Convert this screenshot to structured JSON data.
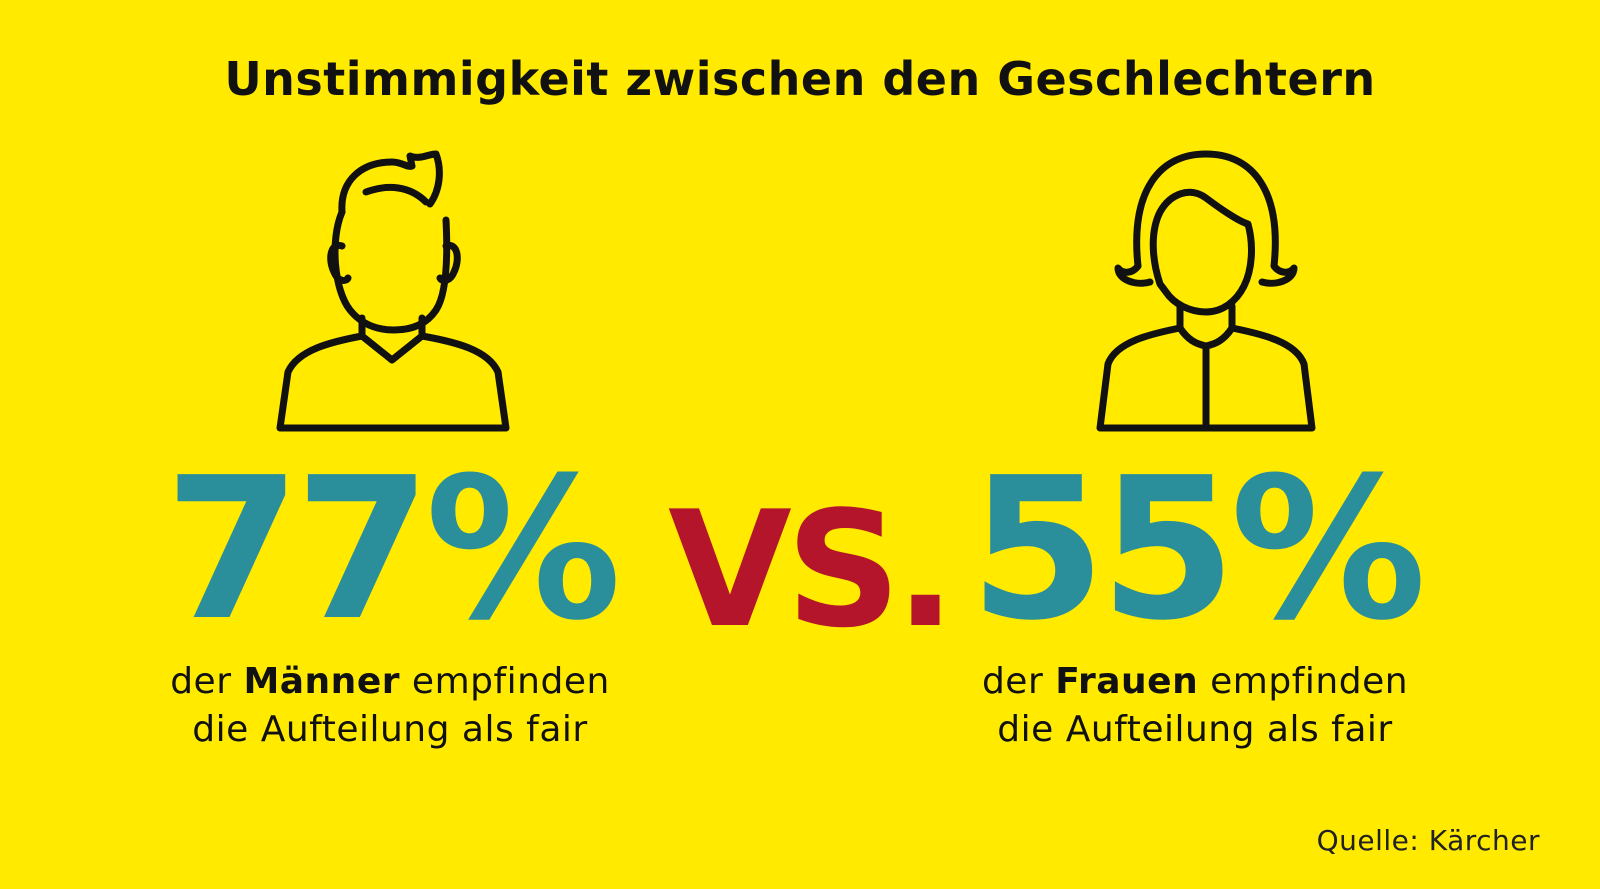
{
  "title": "Unstimmigkeit zwischen den Geschlechtern",
  "left": {
    "value": "77%",
    "caption_line1_prefix": "der ",
    "caption_line1_bold": "Männer",
    "caption_line1_suffix": " empfinden",
    "caption_line2": "die Aufteilung als fair",
    "icon": "man-icon"
  },
  "vs": "VS.",
  "right": {
    "value": "55%",
    "caption_line1_prefix": "der ",
    "caption_line1_bold": "Frauen",
    "caption_line1_suffix": " empfinden",
    "caption_line2": "die Aufteilung als fair",
    "icon": "woman-icon"
  },
  "source": "Quelle: Kärcher",
  "colors": {
    "background": "#ffea00",
    "percent": "#2a8f9a",
    "vs": "#b5152b",
    "text": "#111111"
  }
}
